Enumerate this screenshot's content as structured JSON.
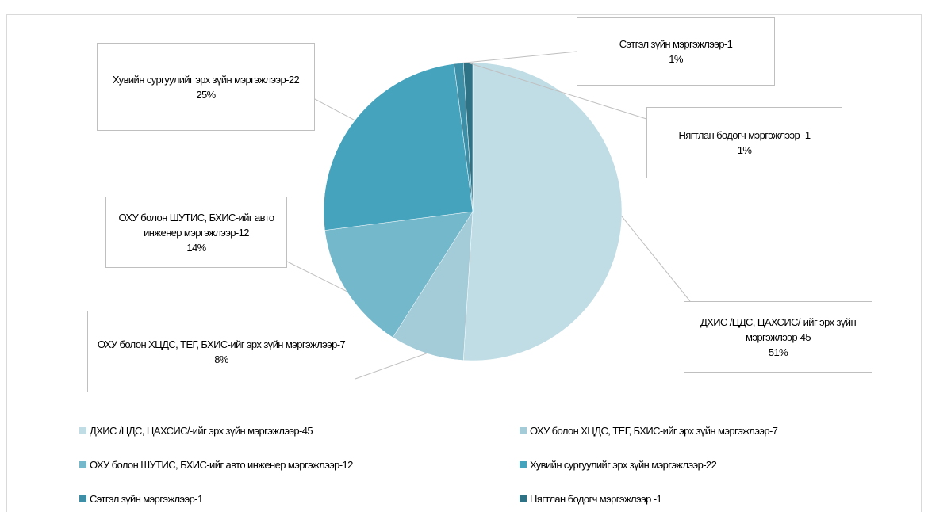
{
  "chart_data": {
    "type": "pie",
    "categories": [
      "ДХИС /ЦДС, ЦАХСИС/-ийг эрх зүйн мэргэжлээр-45",
      "ОХУ болон ХЦДС, ТЕГ, БХИС-ийг эрх зүйн мэргэжлээр-7",
      "ОХУ болон ШУТИС, БХИС-ийг авто инженер мэргэжлээр-12",
      "Хувийн сургуулийг эрх зүйн мэргэжлээр-22",
      "Сэтгэл зүйн мэргэжлээр-1",
      "Нягтлан бодогч мэргэжлээр -1"
    ],
    "values": [
      51,
      8,
      14,
      25,
      1,
      1
    ],
    "value_labels": [
      "51%",
      "8%",
      "14%",
      "25%",
      "1%",
      "1%"
    ],
    "colors": [
      "#c0dce5",
      "#a4cbd8",
      "#74b8cc",
      "#45a3bd",
      "#3c8fa6",
      "#2e7385"
    ],
    "legend": "bottom"
  }
}
